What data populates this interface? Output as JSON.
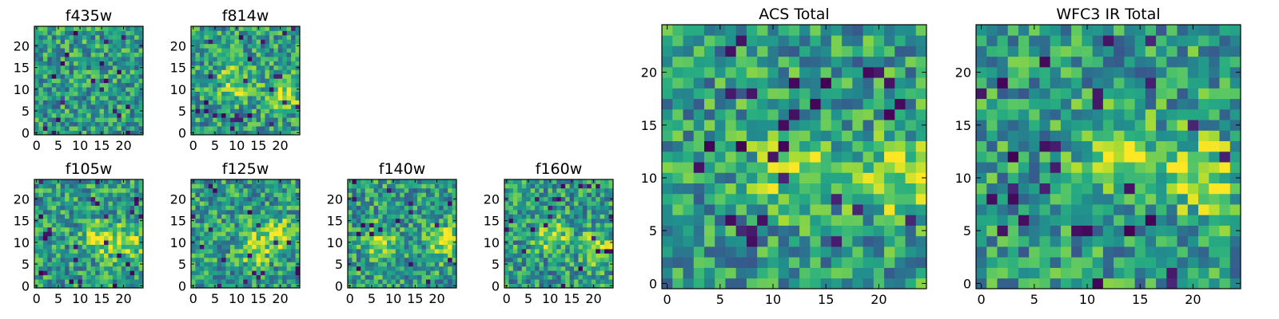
{
  "chart_data": [
    {
      "type": "heatmap",
      "title": "f435w",
      "x_ticks": [
        0,
        5,
        10,
        15,
        20
      ],
      "y_ticks": [
        0,
        5,
        10,
        15,
        20
      ],
      "xlim": [
        0,
        24
      ],
      "ylim": [
        0,
        24
      ],
      "grid_size": 25,
      "colormap": "viridis",
      "hotspots": []
    },
    {
      "type": "heatmap",
      "title": "f814w",
      "x_ticks": [
        0,
        5,
        10,
        15,
        20
      ],
      "y_ticks": [
        0,
        5,
        10,
        15,
        20
      ],
      "xlim": [
        0,
        24
      ],
      "ylim": [
        0,
        24
      ],
      "grid_size": 25,
      "colormap": "viridis",
      "hotspots": [
        [
          10,
          12
        ],
        [
          21,
          9
        ]
      ]
    },
    {
      "type": "heatmap",
      "title": "f105w",
      "x_ticks": [
        0,
        5,
        10,
        15,
        20
      ],
      "y_ticks": [
        0,
        5,
        10,
        15,
        20
      ],
      "xlim": [
        0,
        24
      ],
      "ylim": [
        0,
        24
      ],
      "grid_size": 25,
      "colormap": "viridis",
      "hotspots": [
        [
          15,
          11
        ],
        [
          21,
          10
        ]
      ]
    },
    {
      "type": "heatmap",
      "title": "f125w",
      "x_ticks": [
        0,
        5,
        10,
        15,
        20
      ],
      "y_ticks": [
        0,
        5,
        10,
        15,
        20
      ],
      "xlim": [
        0,
        24
      ],
      "ylim": [
        0,
        24
      ],
      "grid_size": 25,
      "colormap": "viridis",
      "hotspots": [
        [
          20,
          12
        ],
        [
          14,
          9
        ]
      ]
    },
    {
      "type": "heatmap",
      "title": "f140w",
      "x_ticks": [
        0,
        5,
        10,
        15,
        20
      ],
      "y_ticks": [
        0,
        5,
        10,
        15,
        20
      ],
      "xlim": [
        0,
        24
      ],
      "ylim": [
        0,
        24
      ],
      "grid_size": 25,
      "colormap": "viridis",
      "hotspots": [
        [
          22,
          10
        ],
        [
          7,
          10
        ]
      ]
    },
    {
      "type": "heatmap",
      "title": "f160w",
      "x_ticks": [
        0,
        5,
        10,
        15,
        20
      ],
      "y_ticks": [
        0,
        5,
        10,
        15,
        20
      ],
      "xlim": [
        0,
        24
      ],
      "ylim": [
        0,
        24
      ],
      "grid_size": 25,
      "colormap": "viridis",
      "hotspots": [
        [
          21,
          9
        ],
        [
          10,
          12
        ]
      ]
    },
    {
      "type": "heatmap",
      "title": "ACS Total",
      "x_ticks": [
        0,
        5,
        10,
        15,
        20
      ],
      "y_ticks": [
        0,
        5,
        10,
        15,
        20
      ],
      "xlim": [
        0,
        24
      ],
      "ylim": [
        0,
        24
      ],
      "grid_size": 25,
      "colormap": "viridis",
      "hotspots": [
        [
          12,
          11
        ],
        [
          22,
          10
        ]
      ]
    },
    {
      "type": "heatmap",
      "title": "WFC3 IR Total",
      "x_ticks": [
        0,
        5,
        10,
        15,
        20
      ],
      "y_ticks": [
        0,
        5,
        10,
        15,
        20
      ],
      "xlim": [
        0,
        24
      ],
      "ylim": [
        0,
        24
      ],
      "grid_size": 25,
      "colormap": "viridis",
      "hotspots": [
        [
          21,
          10
        ],
        [
          13,
          12
        ]
      ]
    }
  ]
}
